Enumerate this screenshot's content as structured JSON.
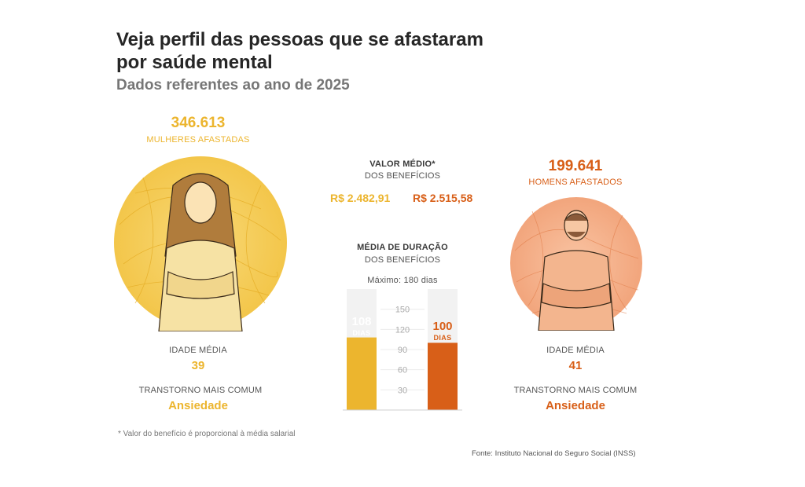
{
  "title": "Veja perfil das pessoas que se afastaram por saúde mental",
  "subtitle": "Dados referentes ao ano de 2025",
  "women": {
    "count": "346.613",
    "count_label": "MULHERES AFASTADAS",
    "age_label": "IDADE MÉDIA",
    "age": "39",
    "disorder_label": "TRANSTORNO MAIS COMUM",
    "disorder": "Ansiedade",
    "color": "#ecb52e"
  },
  "men": {
    "count": "199.641",
    "count_label": "HOMENS AFASTADOS",
    "age_label": "IDADE MÉDIA",
    "age": "41",
    "disorder_label": "TRANSTORNO MAIS COMUM",
    "disorder": "Ansiedade",
    "color": "#d85f18"
  },
  "benefit_value": {
    "label": "VALOR MÉDIO*",
    "sublabel": "DOS BENEFÍCIOS",
    "women": "R$ 2.482,91",
    "men": "R$ 2.515,58"
  },
  "duration": {
    "label": "MÉDIA DE DURAÇÃO",
    "sublabel": "DOS BENEFÍCIOS",
    "max_label": "Máximo: 180 dias",
    "women_value": "108",
    "men_value": "100",
    "unit": "DIAS"
  },
  "chart_data": {
    "type": "bar",
    "categories": [
      "Mulheres",
      "Homens"
    ],
    "values": [
      108,
      100
    ],
    "ylim": [
      0,
      180
    ],
    "yticks": [
      "30",
      "60",
      "90",
      "120",
      "150"
    ],
    "ytick_values": [
      30,
      60,
      90,
      120,
      150
    ],
    "colors": [
      "#ecb52e",
      "#d85f18"
    ]
  },
  "footnote": "*  Valor do benefício é proporcional à média salarial",
  "source": "Fonte: Instituto Nacional do Seguro Social (INSS)"
}
